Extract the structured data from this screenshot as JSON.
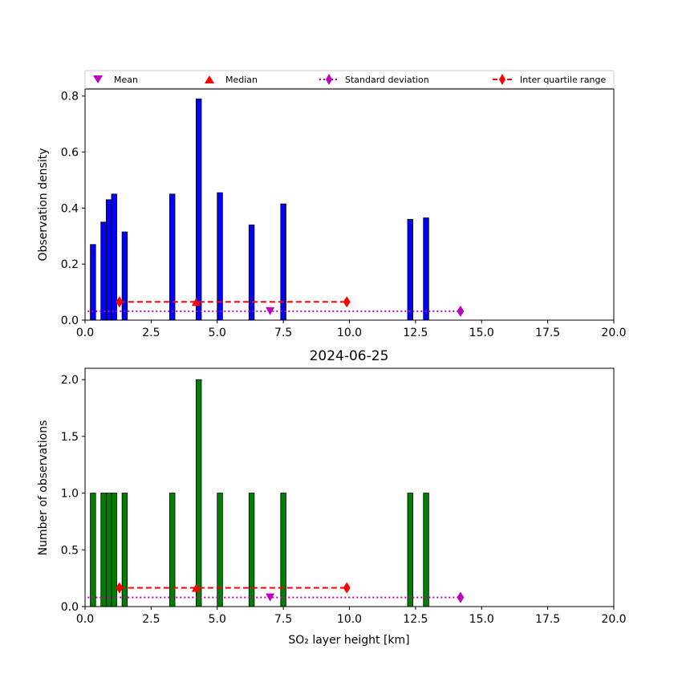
{
  "figure": {
    "title": "2024-06-25",
    "legend": {
      "placement": "top",
      "entries": [
        {
          "label": "Mean",
          "marker": "triangle-down",
          "color": "#bf00bf"
        },
        {
          "label": "Median",
          "marker": "triangle-up",
          "color": "#ff0000"
        },
        {
          "label": "Standard deviation",
          "marker": "diamond",
          "line": "dotted",
          "color": "#bf00bf"
        },
        {
          "label": "Inter quartile range",
          "marker": "diamond",
          "line": "dashed",
          "color": "#ff0000"
        }
      ]
    }
  },
  "chart_data": [
    {
      "type": "bar",
      "name": "density",
      "xlabel": "",
      "ylabel": "Observation density",
      "xlim": [
        0,
        20
      ],
      "ylim": [
        0,
        0.825
      ],
      "xticks": [
        "0.0",
        "2.5",
        "5.0",
        "7.5",
        "10.0",
        "12.5",
        "15.0",
        "17.5",
        "20.0"
      ],
      "xtick_values": [
        0,
        2.5,
        5,
        7.5,
        10,
        12.5,
        15,
        17.5,
        20
      ],
      "yticks": [
        "0.0",
        "0.2",
        "0.4",
        "0.6",
        "0.8"
      ],
      "ytick_values": [
        0,
        0.2,
        0.4,
        0.6,
        0.8
      ],
      "bar_width": 0.2,
      "bar_color": "#0000ff",
      "x": [
        0.3,
        0.7,
        0.9,
        1.1,
        1.5,
        3.3,
        4.3,
        5.1,
        6.3,
        7.5,
        12.3,
        12.9
      ],
      "values": [
        0.27,
        0.35,
        0.43,
        0.45,
        0.315,
        0.45,
        0.79,
        0.455,
        0.34,
        0.415,
        0.36,
        0.365
      ],
      "stats": {
        "mean": {
          "x": 7.0,
          "y": 0.032
        },
        "median": {
          "x": 4.2,
          "y": 0.065
        },
        "std": {
          "x1": 0.1,
          "x2": 14.2,
          "y": 0.032
        },
        "iqr": {
          "x1": 1.3,
          "x2": 9.9,
          "y": 0.065
        }
      }
    },
    {
      "type": "bar",
      "name": "counts",
      "xlabel": "SO₂ layer height [km]",
      "ylabel": "Number of observations",
      "xlim": [
        0,
        20
      ],
      "ylim": [
        0,
        2.1
      ],
      "xticks": [
        "0.0",
        "2.5",
        "5.0",
        "7.5",
        "10.0",
        "12.5",
        "15.0",
        "17.5",
        "20.0"
      ],
      "xtick_values": [
        0,
        2.5,
        5,
        7.5,
        10,
        12.5,
        15,
        17.5,
        20
      ],
      "yticks": [
        "0.0",
        "0.5",
        "1.0",
        "1.5",
        "2.0"
      ],
      "ytick_values": [
        0,
        0.5,
        1,
        1.5,
        2
      ],
      "bar_width": 0.2,
      "bar_color": "#008000",
      "x": [
        0.3,
        0.7,
        0.9,
        1.1,
        1.5,
        3.3,
        4.3,
        5.1,
        6.3,
        7.5,
        12.3,
        12.9
      ],
      "values": [
        1,
        1,
        1,
        1,
        1,
        1,
        2,
        1,
        1,
        1,
        1,
        1
      ],
      "stats": {
        "mean": {
          "x": 7.0,
          "y": 0.08
        },
        "median": {
          "x": 4.2,
          "y": 0.165
        },
        "std": {
          "x1": 0.1,
          "x2": 14.2,
          "y": 0.08
        },
        "iqr": {
          "x1": 1.3,
          "x2": 9.9,
          "y": 0.165
        }
      }
    }
  ]
}
